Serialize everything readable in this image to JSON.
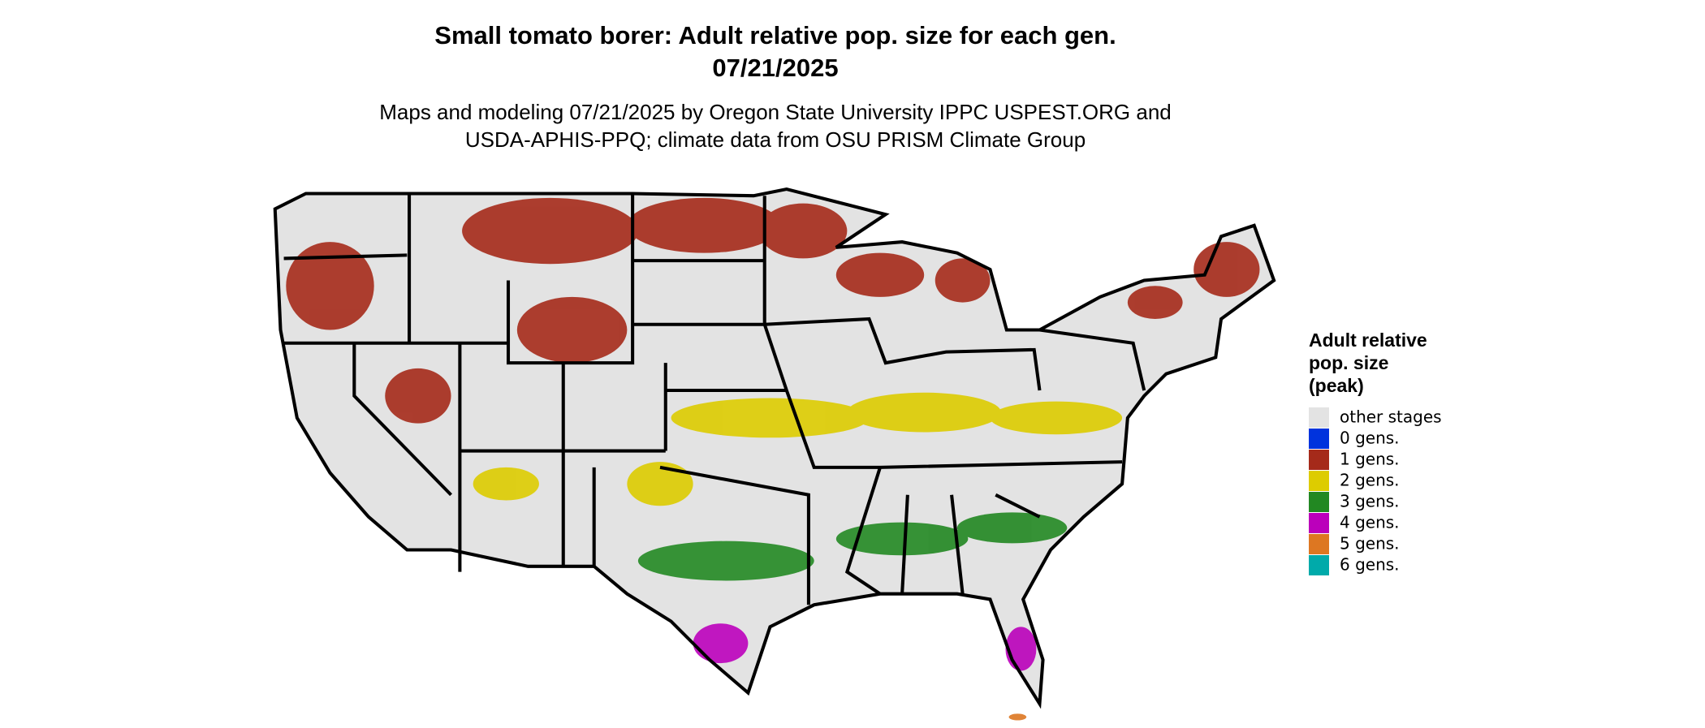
{
  "title": "Small tomato borer: Adult relative pop. size for each gen.",
  "date": "07/21/2025",
  "subtitle_lines": [
    "Maps and modeling 07/21/2025 by Oregon State University IPPC USPEST.ORG and",
    "USDA-APHIS-PPQ; climate data from OSU PRISM Climate Group"
  ],
  "legend": {
    "title_lines": [
      "Adult relative",
      "pop. size",
      "(peak)"
    ],
    "items": [
      {
        "label": "other stages",
        "color": "#e3e3e3"
      },
      {
        "label": "0 gens.",
        "color": "#0033dd"
      },
      {
        "label": "1 gens.",
        "color": "#a52a1a"
      },
      {
        "label": "2 gens.",
        "color": "#ddcc00"
      },
      {
        "label": "3 gens.",
        "color": "#228822"
      },
      {
        "label": "4 gens.",
        "color": "#bb00bb"
      },
      {
        "label": "5 gens.",
        "color": "#dd7722"
      },
      {
        "label": "6 gens.",
        "color": "#00aaaa"
      }
    ]
  }
}
